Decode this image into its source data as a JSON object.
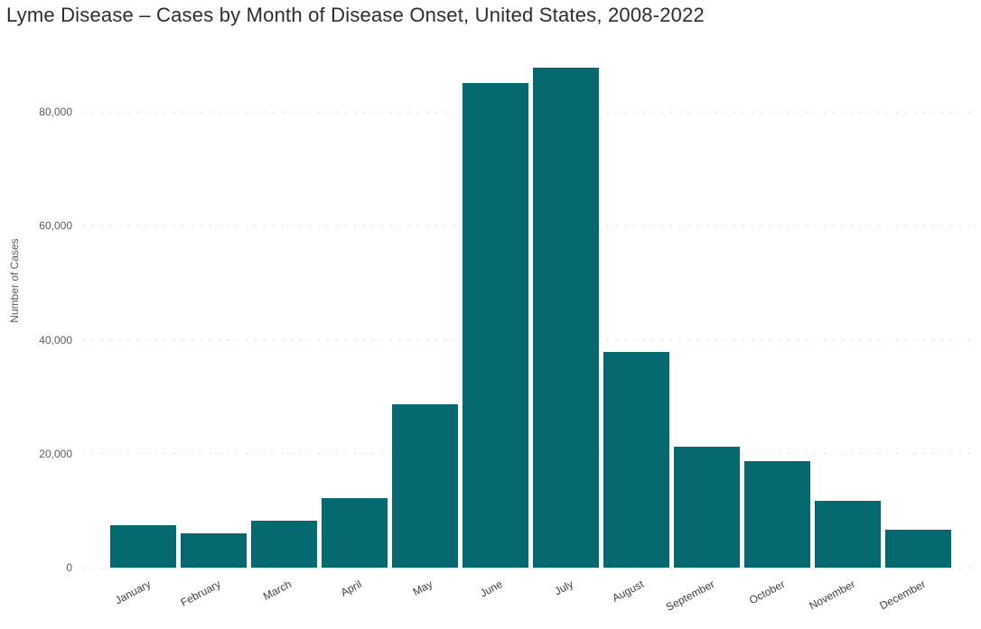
{
  "page": {
    "background": "#FFFFFF"
  },
  "chart_data": {
    "type": "bar",
    "title": "Lyme Disease – Cases by Month of Disease Onset, United States, 2008-2022",
    "xlabel": "",
    "ylabel": "Number of Cases",
    "categories": [
      "January",
      "February",
      "March",
      "April",
      "May",
      "June",
      "July",
      "August",
      "September",
      "October",
      "November",
      "December"
    ],
    "values": [
      7500,
      6000,
      8200,
      12200,
      28700,
      85000,
      87800,
      37900,
      21200,
      18700,
      11700,
      6600
    ],
    "ylim": [
      0,
      90000
    ],
    "yticks": [
      0,
      20000,
      40000,
      60000,
      80000
    ],
    "ytick_labels": [
      "0",
      "20,000",
      "40,000",
      "60,000",
      "80,000"
    ],
    "grid": "horizontal-dotted",
    "legend": "none",
    "x_label_rotation_deg": -28,
    "colors": {
      "bar": "#066970",
      "gridline": "#D2D2D2",
      "title_text": "#2D2D2D",
      "y_tick_text": "#5C5C5C",
      "y_axis_title_text": "#5C5C5C",
      "x_label_text": "#404040"
    }
  }
}
